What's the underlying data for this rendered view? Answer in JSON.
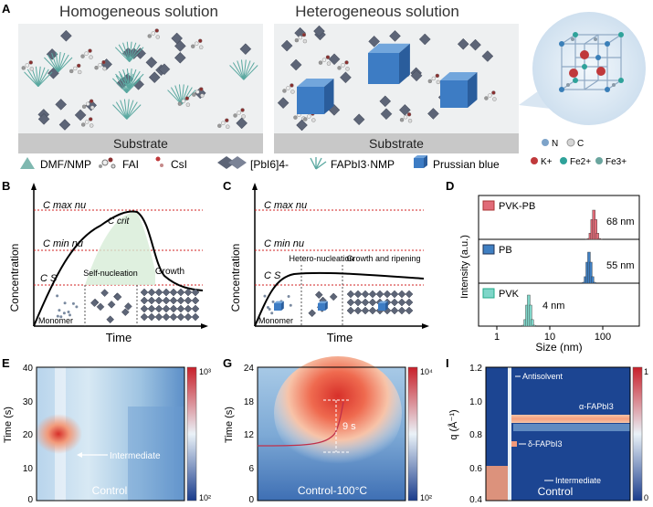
{
  "panel_a": {
    "letter": "A",
    "title_left": "Homogeneous solution",
    "title_right": "Heterogeneous solution",
    "substrate_left": "Substrate",
    "substrate_right": "Substrate",
    "legend": [
      "DMF/NMP",
      "FAI",
      "CsI",
      "[PbI6]4-",
      "FAPbI3·NMP",
      "Prussian blue"
    ],
    "crystal_legend": [
      "N",
      "C",
      "K+",
      "Fe2+",
      "Fe3+"
    ]
  },
  "panel_b": {
    "letter": "B",
    "labels": [
      "C max nu",
      "C min nu",
      "C crit",
      "C S"
    ],
    "stage_labels": [
      "Self-nucleation",
      "Growth",
      "Monomer"
    ],
    "ylabel": "Concentration",
    "xlabel": "Time"
  },
  "panel_c": {
    "letter": "C",
    "labels": [
      "C max nu",
      "C min nu",
      "C S"
    ],
    "stage_labels": [
      "Hetero-nucleation",
      "Growth and ripening",
      "Monomer"
    ],
    "ylabel": "Concentration",
    "xlabel": "Time"
  },
  "panel_d": {
    "letter": "D",
    "ylabel": "Intensity (a.u.)",
    "xlabel": "Size (nm)",
    "xticks": [
      "1",
      "10",
      "100"
    ],
    "series": [
      {
        "name": "PVK-PB",
        "label": "68 nm",
        "color": "#e16b78"
      },
      {
        "name": "PB",
        "label": "55 nm",
        "color": "#3f7fc2"
      },
      {
        "name": "PVK",
        "label": "4 nm",
        "color": "#7fd6c9"
      }
    ]
  },
  "panel_e": {
    "letter": "E",
    "ylabel": "Time (s)",
    "yticks": [
      "40",
      "30",
      "20",
      "10",
      "0"
    ],
    "annotation": "Intermediate",
    "caption": "Control",
    "cbar_top": "10³",
    "cbar_bottom": "10²"
  },
  "panel_g": {
    "letter": "G",
    "ylabel": "Time (s)",
    "yticks": [
      "24",
      "18",
      "12",
      "6",
      "0"
    ],
    "annotation": "9 s",
    "caption": "Control-100°C",
    "cbar_top": "10⁴",
    "cbar_bottom": "10²"
  },
  "panel_i": {
    "letter": "I",
    "ylabel": "q (Å⁻¹)",
    "yticks": [
      "1.2",
      "1.0",
      "0.8",
      "0.6",
      "0.4"
    ],
    "annotations": [
      "Antisolvent",
      "α-FAPbI3",
      "δ-FAPbI3",
      "Intermediate"
    ],
    "caption": "Control",
    "cbar_top": "1",
    "cbar_bottom": "0"
  },
  "colors": {
    "heat_low": "#1a3c8c",
    "heat_mid": "#cfe3f2",
    "heat_high": "#d7302a",
    "crit_line": "#d02020"
  }
}
